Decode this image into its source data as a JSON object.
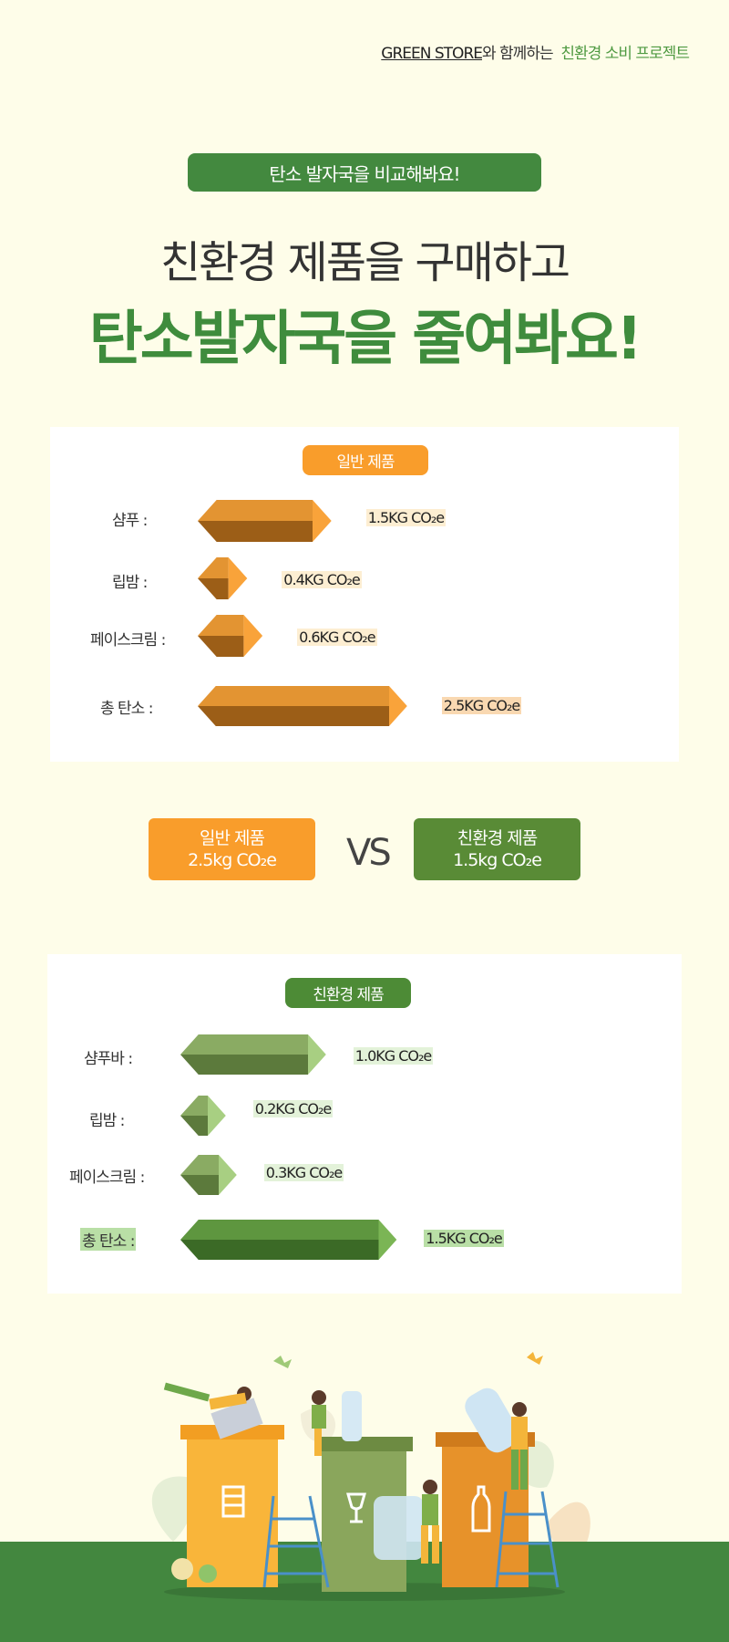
{
  "header": {
    "brand": "GREEN STORE",
    "connector": "와 함께하는",
    "project": "친환경 소비 프로젝트"
  },
  "hero": {
    "pill": "탄소 발자국을 비교해봐요!",
    "line1": "친환경 제품을 구매하고",
    "line2": "탄소발자국을 줄여봐요!"
  },
  "normal_card": {
    "title": "일반 제품",
    "rows": [
      {
        "label": "샴푸 :",
        "value": "1.5KG CO₂e",
        "amount": 1.5
      },
      {
        "label": "립밤 :",
        "value": "0.4KG CO₂e",
        "amount": 0.4
      },
      {
        "label": "페이스크림 :",
        "value": "0.6KG CO₂e",
        "amount": 0.6
      },
      {
        "label": "총 탄소 :",
        "value": "2.5KG CO₂e",
        "amount": 2.5
      }
    ],
    "colors": {
      "front": "#d07e22",
      "top": "#e39432",
      "bottom": "#9c5e17",
      "end": "#f9a33a"
    }
  },
  "compare": {
    "left_line1": "일반 제품",
    "left_line2": "2.5kg CO₂e",
    "vs": "VS",
    "right_line1": "친환경 제품",
    "right_line2": "1.5kg CO₂e"
  },
  "eco_card": {
    "title": "친환경 제품",
    "rows": [
      {
        "label": "샴푸바 :",
        "value": "1.0KG CO₂e",
        "amount": 1.0
      },
      {
        "label": "립밤 :",
        "value": "0.2KG CO₂e",
        "amount": 0.2
      },
      {
        "label": "페이스크림 :",
        "value": "0.3KG CO₂e",
        "amount": 0.3
      },
      {
        "label": "총 탄소 :",
        "value": "1.5KG CO₂e",
        "amount": 1.5
      }
    ],
    "colors": {
      "front": "#7a9b55",
      "top": "#8aab63",
      "bottom": "#5c7a3c",
      "end": "#a8cf82"
    },
    "total_colors": {
      "front": "#4f8534",
      "top": "#5e963f",
      "bottom": "#3b6a26",
      "end": "#7bb555"
    }
  },
  "illustration": {
    "icons": [
      "paper-bin-icon",
      "glass-bin-icon",
      "plastic-bin-icon"
    ],
    "ground_color": "#43873f"
  }
}
